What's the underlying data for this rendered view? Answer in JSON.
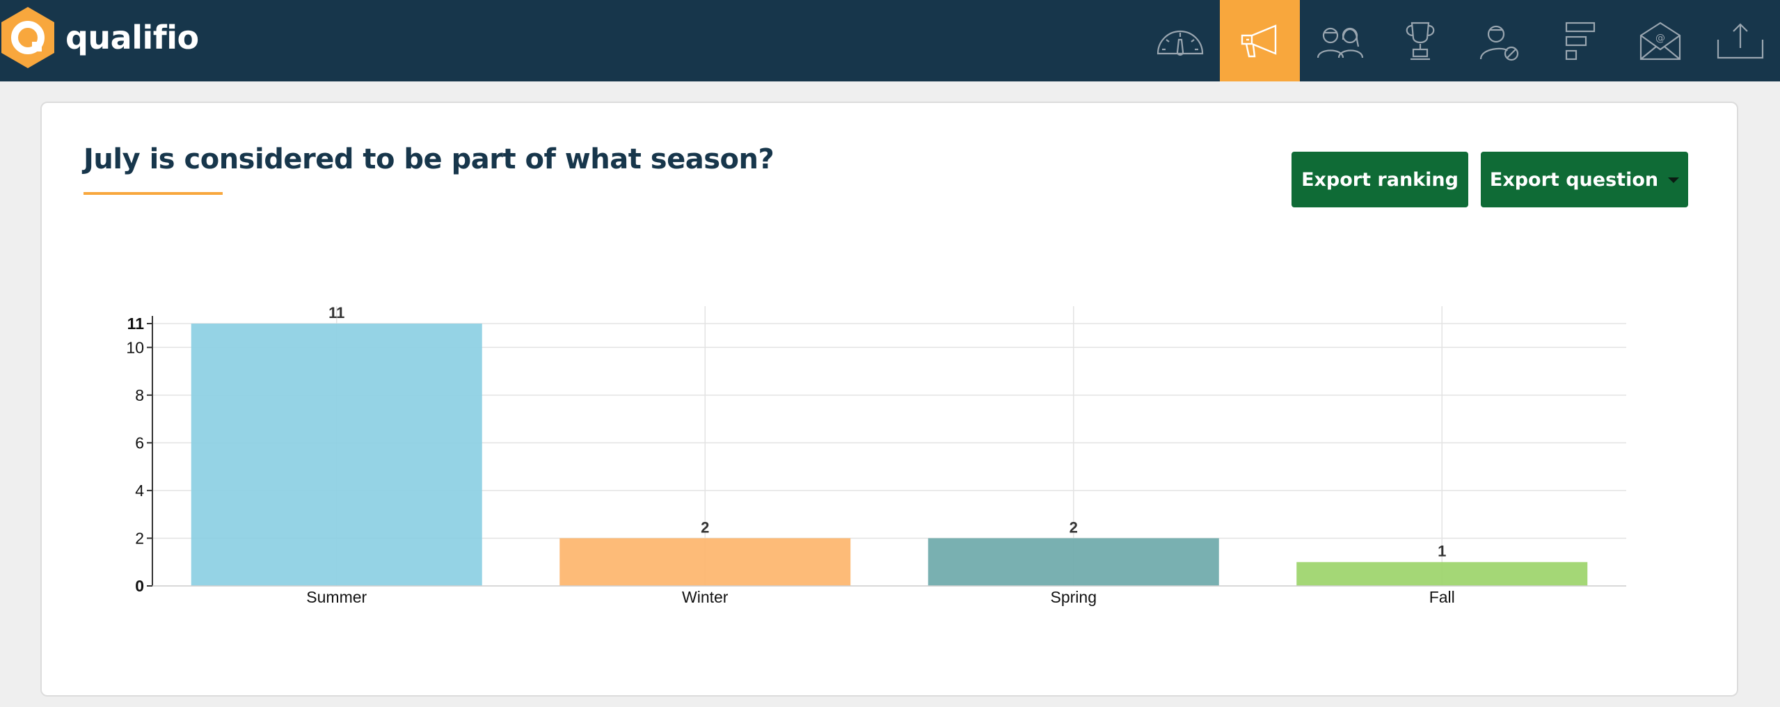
{
  "app": {
    "brand_name": "qualifio",
    "brand_color": "#f8a73d",
    "header_bg": "#17364b"
  },
  "nav": {
    "items": [
      {
        "icon": "dashboard-gauge-icon",
        "active": false
      },
      {
        "icon": "megaphone-icon",
        "active": true
      },
      {
        "icon": "participants-icon",
        "active": false
      },
      {
        "icon": "trophy-icon",
        "active": false
      },
      {
        "icon": "user-blocked-icon",
        "active": false
      },
      {
        "icon": "bar-chart-icon",
        "active": false
      },
      {
        "icon": "email-icon",
        "active": false
      },
      {
        "icon": "export-icon",
        "active": false
      }
    ]
  },
  "question": {
    "title": "July is considered to be part of what season?"
  },
  "actions": {
    "export_ranking_label": "Export ranking",
    "export_question_label": "Export question"
  },
  "chart_data": {
    "type": "bar",
    "categories": [
      "Summer",
      "Winter",
      "Spring",
      "Fall"
    ],
    "values": [
      11,
      2,
      2,
      1
    ],
    "colors": [
      "#8ccfe3",
      "#fdb56d",
      "#6ea9aa",
      "#9cd46a"
    ],
    "data_labels": [
      "11",
      "2",
      "2",
      "1"
    ],
    "y_ticks": [
      "0",
      "2",
      "4",
      "6",
      "8",
      "10",
      "11"
    ],
    "ylim": [
      0,
      11
    ],
    "grid": true,
    "legend": "none"
  }
}
